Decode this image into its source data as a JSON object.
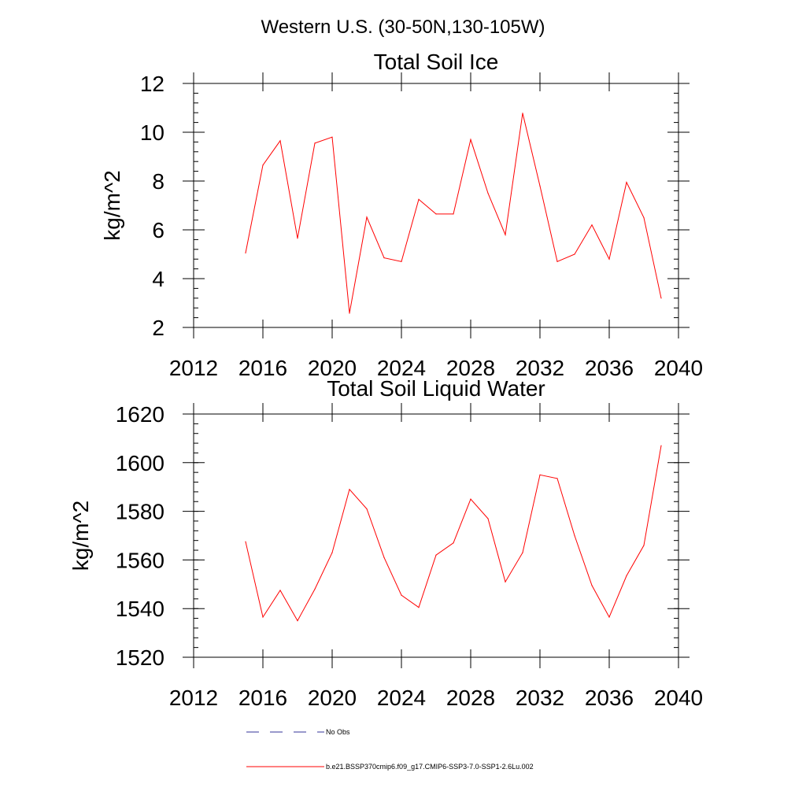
{
  "suptitle": "Western U.S. (30-50N,130-105W)",
  "colors": {
    "series": "#ff0000",
    "obs": "#333399",
    "axis": "#000000"
  },
  "legend": {
    "obs_label": "No Obs",
    "model_label": "b.e21.BSSP370cmip6.f09_g17.CMIP6-SSP3-7.0-SSP1-2.6Lu.002",
    "placement": "bottom"
  },
  "chart_data": [
    {
      "type": "line",
      "title": "Total Soil Ice",
      "xlabel": "",
      "ylabel": "kg/m^2",
      "xlim": [
        2012,
        2040
      ],
      "ylim": [
        2,
        12
      ],
      "xticks": [
        2012,
        2016,
        2020,
        2024,
        2028,
        2032,
        2036,
        2040
      ],
      "yticks": [
        2,
        4,
        6,
        8,
        10,
        12
      ],
      "grid": false,
      "x": [
        2015,
        2016,
        2017,
        2018,
        2019,
        2020,
        2021,
        2022,
        2023,
        2024,
        2025,
        2026,
        2027,
        2028,
        2029,
        2030,
        2031,
        2032,
        2033,
        2034,
        2035,
        2036,
        2037,
        2038,
        2039
      ],
      "series": [
        {
          "values": [
            5.05,
            8.65,
            9.65,
            5.65,
            9.55,
            9.8,
            2.58,
            6.52,
            4.85,
            4.7,
            7.25,
            6.65,
            6.65,
            9.7,
            7.5,
            5.8,
            10.78,
            7.8,
            4.7,
            5.0,
            6.2,
            4.8,
            7.95,
            6.5,
            3.2
          ]
        }
      ]
    },
    {
      "type": "line",
      "title": "Total Soil Liquid Water",
      "xlabel": "",
      "ylabel": "kg/m^2",
      "xlim": [
        2012,
        2040
      ],
      "ylim": [
        1520,
        1620
      ],
      "xticks": [
        2012,
        2016,
        2020,
        2024,
        2028,
        2032,
        2036,
        2040
      ],
      "yticks": [
        1520,
        1540,
        1560,
        1580,
        1600,
        1620
      ],
      "grid": false,
      "x": [
        2015,
        2016,
        2017,
        2018,
        2019,
        2020,
        2021,
        2022,
        2023,
        2024,
        2025,
        2026,
        2027,
        2028,
        2029,
        2030,
        2031,
        2032,
        2033,
        2034,
        2035,
        2036,
        2037,
        2038,
        2039
      ],
      "series": [
        {
          "values": [
            1567.5,
            1536.5,
            1547.5,
            1535,
            1548,
            1563,
            1589,
            1581,
            1561,
            1545.5,
            1540.5,
            1562,
            1567,
            1585,
            1577,
            1551,
            1563,
            1595,
            1593.5,
            1570,
            1549.5,
            1536.5,
            1553.5,
            1566,
            1607
          ]
        }
      ]
    }
  ]
}
